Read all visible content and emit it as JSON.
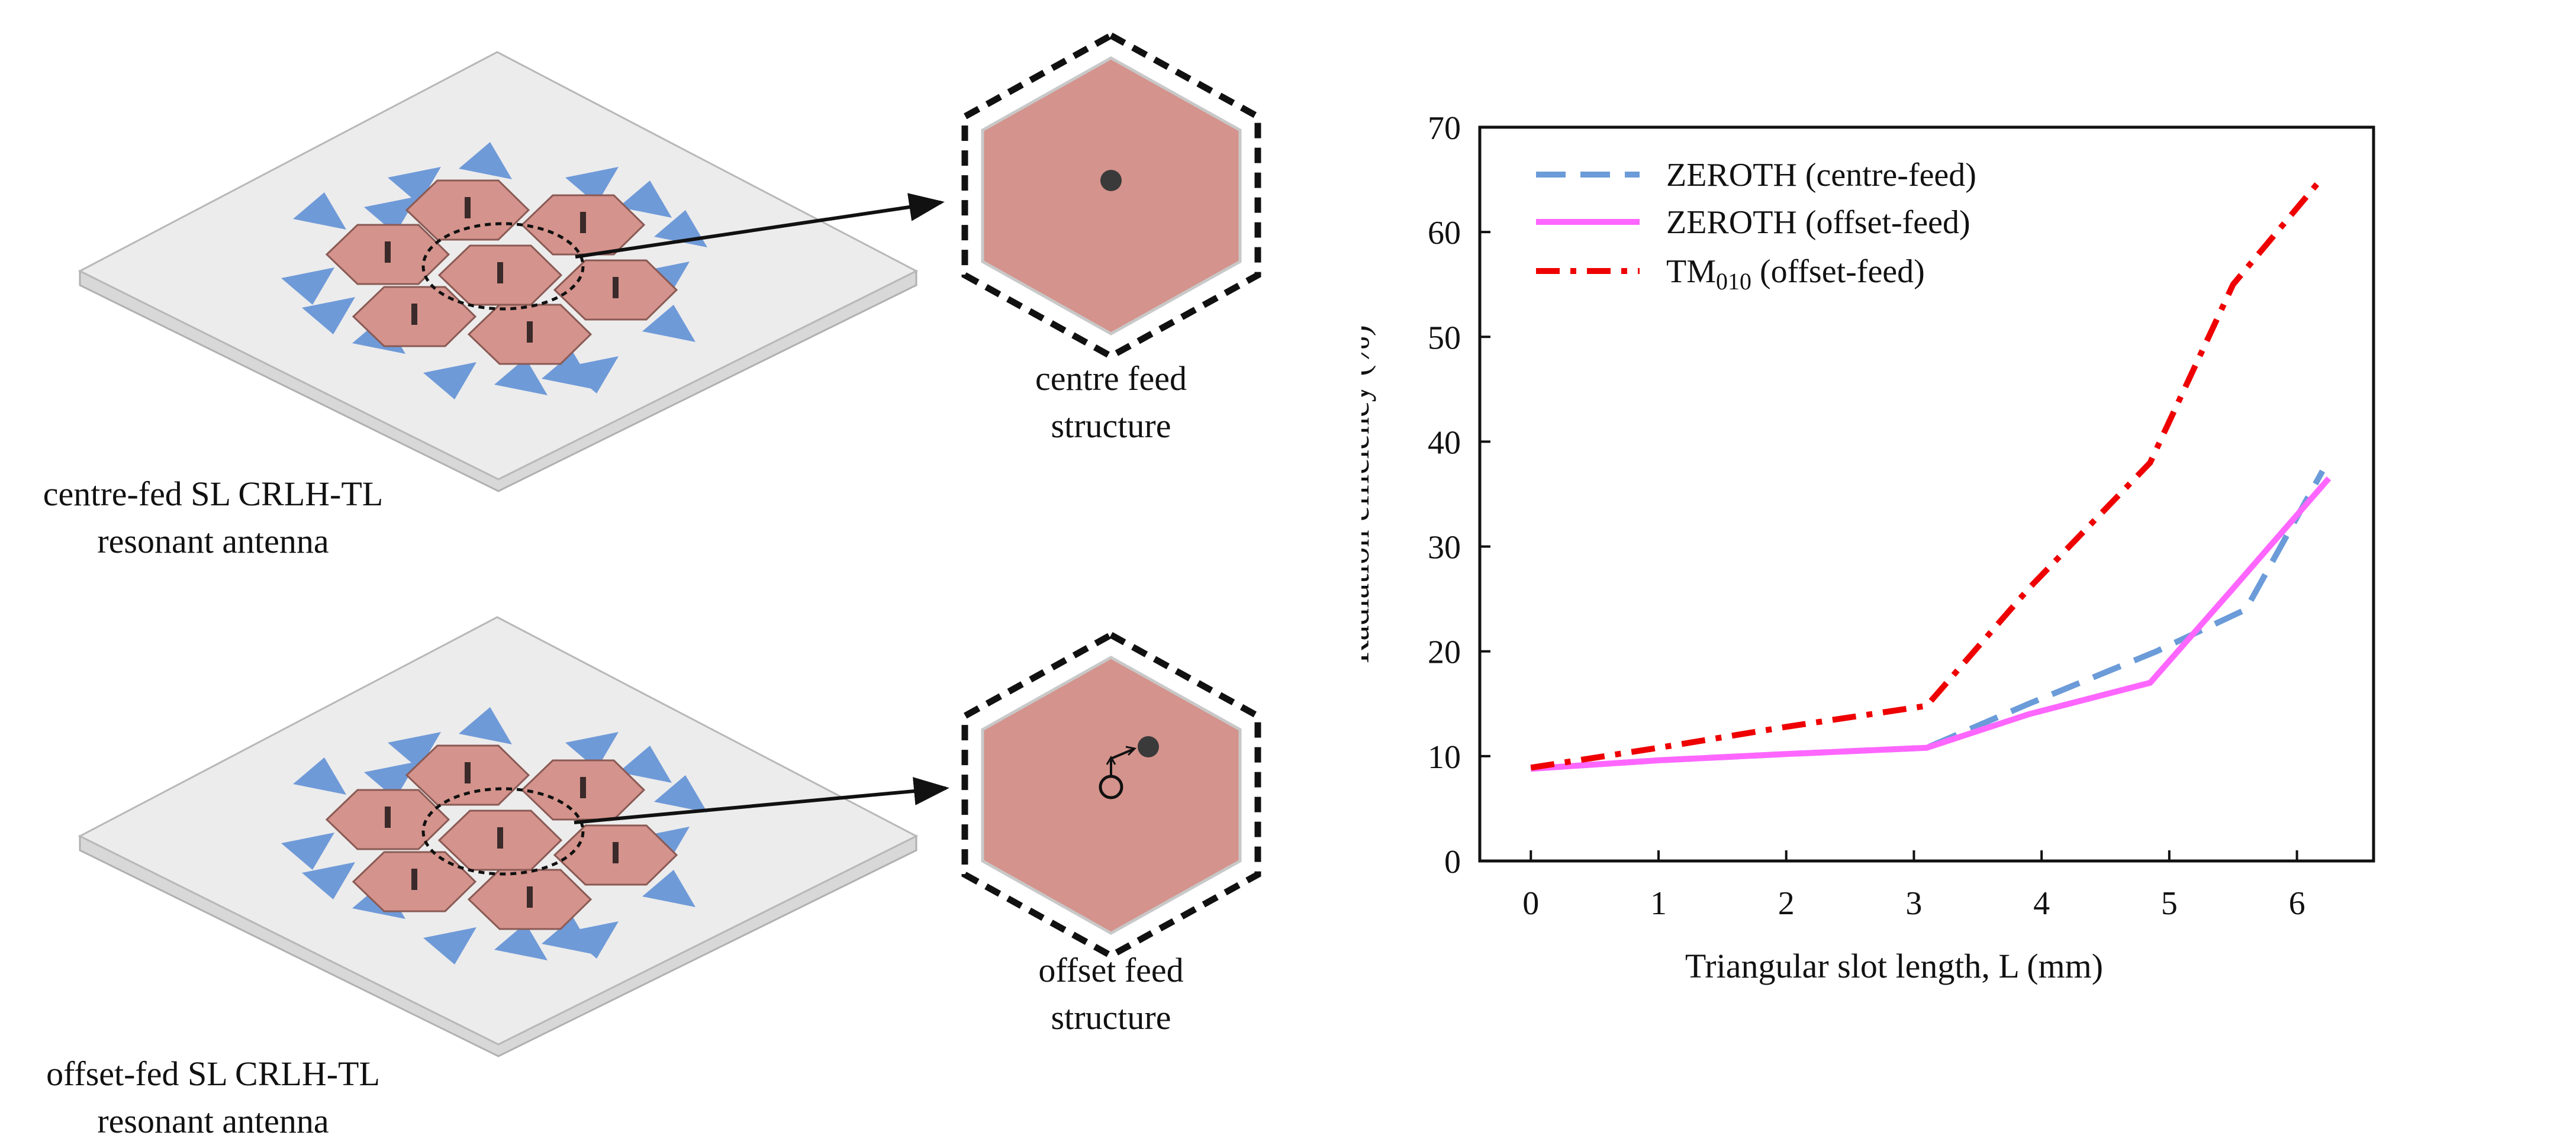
{
  "left_panel": {
    "top_antenna": {
      "line1": "centre-fed SL CRLH-TL",
      "line2": "resonant antenna"
    },
    "bottom_antenna": {
      "line1": "offset-fed SL CRLH-TL",
      "line2": "resonant antenna"
    },
    "top_feed": {
      "line1": "centre feed",
      "line2": "structure"
    },
    "bottom_feed": {
      "line1": "offset feed",
      "line2": "structure"
    },
    "colors": {
      "patch": "#d4938c",
      "slot": "#6f9ad8",
      "substrate": "#ececec"
    }
  },
  "chart_data": {
    "type": "line",
    "title": "",
    "xlabel": "Triangular slot length, L (mm)",
    "ylabel": "Radiation efficiency (%)",
    "xlim": [
      -0.4,
      6.6
    ],
    "ylim": [
      0,
      70
    ],
    "xticks": [
      0,
      1,
      2,
      3,
      4,
      5,
      6
    ],
    "yticks": [
      0,
      10,
      20,
      30,
      40,
      50,
      60,
      70
    ],
    "grid": false,
    "legend_position": "top-left",
    "series": [
      {
        "name": "ZEROTH (centre-feed)",
        "style": "dashed",
        "color": "#6b9bd8",
        "x": [
          0,
          1,
          2,
          3.1,
          3.9,
          4.9,
          5.6,
          6.2
        ],
        "y": [
          8.8,
          9.6,
          10.2,
          10.8,
          15.0,
          20.0,
          24.0,
          37.2
        ]
      },
      {
        "name": "ZEROTH (offset-feed)",
        "style": "solid",
        "color": "#ff66ff",
        "x": [
          0,
          1,
          2,
          3.1,
          3.9,
          4.85,
          5.5,
          6.25
        ],
        "y": [
          8.8,
          9.6,
          10.2,
          10.8,
          14.0,
          17.0,
          26.0,
          36.5
        ]
      },
      {
        "name": "TM010 (offset-feed)",
        "name_main": "TM",
        "name_sub": "010",
        "name_rest": " (offset-feed)",
        "style": "dashdot",
        "color": "#ee0000",
        "x": [
          0,
          1,
          2,
          3.1,
          3.9,
          4.85,
          5.5,
          6.2
        ],
        "y": [
          8.9,
          10.8,
          12.8,
          14.8,
          26.0,
          38.0,
          55.0,
          65.2
        ]
      }
    ]
  }
}
